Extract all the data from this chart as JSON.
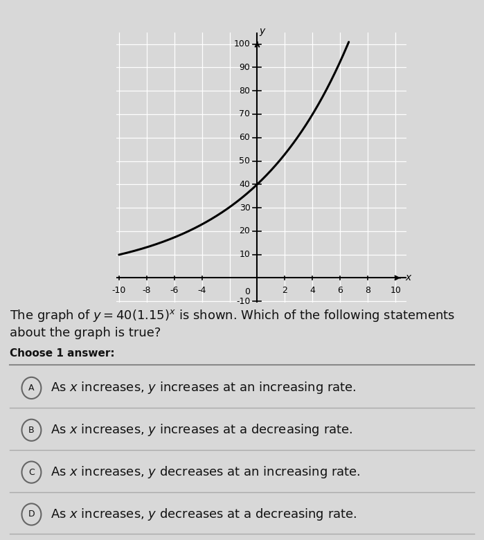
{
  "func_a": 40,
  "func_b": 1.15,
  "x_min": -10,
  "x_max": 10,
  "y_min": -10,
  "y_max": 100,
  "graph_bg": "#dcdcdc",
  "plot_bg": "#e8e8e8",
  "page_bg": "#d8d8d8",
  "grid_color": "#ffffff",
  "curve_color": "#000000",
  "axis_color": "#000000",
  "line_width": 2.2,
  "x_ticks_labels": [
    -10,
    -8,
    -6,
    -4,
    2,
    4,
    6,
    8,
    10
  ],
  "y_ticks_labels": [
    10,
    20,
    30,
    40,
    50,
    60,
    70,
    80,
    90,
    100
  ],
  "title_text_line1": "The graph of $y = 40(1.15)^x$ is shown. Which of the following statements",
  "title_text_line2": "about the graph is true?",
  "choose_text": "Choose 1 answer:",
  "options": [
    {
      "label": "A",
      "text": "As $x$ increases, $y$ increases at an increasing rate."
    },
    {
      "label": "B",
      "text": "As $x$ increases, $y$ increases at a decreasing rate."
    },
    {
      "label": "C",
      "text": "As $x$ increases, $y$ decreases at an increasing rate."
    },
    {
      "label": "D",
      "text": "As $x$ increases, $y$ decreases at a decreasing rate."
    }
  ],
  "text_color": "#111111",
  "title_fontsize": 13,
  "option_fontsize": 13,
  "choose_fontsize": 11,
  "tick_fontsize": 9
}
